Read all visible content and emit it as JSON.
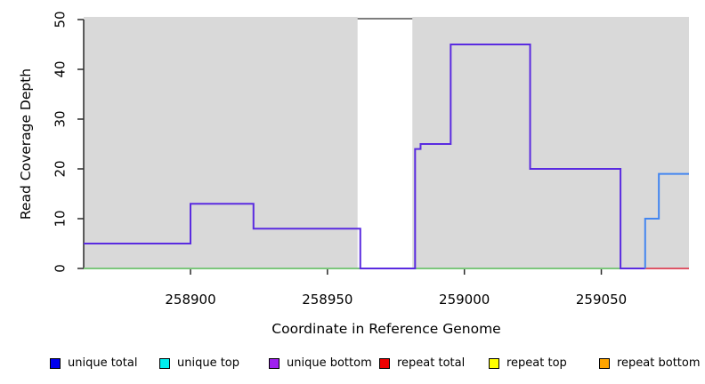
{
  "chart_data": {
    "type": "line",
    "subtype": "step-coverage",
    "title": "",
    "xlabel": "Coordinate in Reference Genome",
    "ylabel": "Read Coverage Depth",
    "xlim": [
      258861,
      259082
    ],
    "ylim": [
      0,
      50
    ],
    "x_ticks": [
      258900,
      258950,
      259000,
      259050
    ],
    "y_ticks": [
      0,
      10,
      20,
      30,
      40,
      50
    ],
    "grid": false,
    "legend_position": "bottom",
    "colors": {
      "plot_background_region": "#d9d9d9",
      "gap_marker": "#7d7d7d",
      "axis": "#2a2a2a",
      "tick_text": "#000000"
    },
    "background_regions": [
      {
        "name": "covered-region-left",
        "x0": 258861,
        "x1": 258961,
        "color": "#d9d9d9"
      },
      {
        "name": "covered-region-right",
        "x0": 258981,
        "x1": 259082,
        "color": "#d9d9d9"
      }
    ],
    "gap_region": {
      "x0": 258961,
      "x1": 258981,
      "marker_value": 50
    },
    "series": [
      {
        "name": "zero-baseline-green",
        "color": "#7cc67c",
        "width": 2,
        "points": [
          [
            258861,
            0
          ],
          [
            259057,
            0
          ]
        ]
      },
      {
        "name": "repeat-total-baseline-red",
        "color": "#dd5566",
        "width": 2,
        "points": [
          [
            259066,
            0
          ],
          [
            259082,
            0
          ]
        ]
      },
      {
        "name": "unique-coverage-step",
        "color": "#5a2be0",
        "width": 2,
        "points": [
          [
            258861,
            5
          ],
          [
            258900,
            5
          ],
          [
            258900,
            13
          ],
          [
            258923,
            13
          ],
          [
            258923,
            8
          ],
          [
            258962,
            8
          ],
          [
            258962,
            0
          ],
          [
            258982,
            0
          ],
          [
            258982,
            24
          ],
          [
            258984,
            24
          ],
          [
            258984,
            25
          ],
          [
            258995,
            25
          ],
          [
            258995,
            45
          ],
          [
            259024,
            45
          ],
          [
            259024,
            20
          ],
          [
            259057,
            20
          ],
          [
            259057,
            0
          ],
          [
            259066,
            0
          ]
        ]
      },
      {
        "name": "unique-total-step-right",
        "color": "#4386f0",
        "width": 2,
        "points": [
          [
            259066,
            0
          ],
          [
            259066,
            10
          ],
          [
            259071,
            10
          ],
          [
            259071,
            19
          ],
          [
            259082,
            19
          ]
        ]
      }
    ],
    "legend": [
      {
        "label": "unique total",
        "color": "#0000ee"
      },
      {
        "label": "unique top",
        "color": "#00eeee"
      },
      {
        "label": "unique bottom",
        "color": "#a020f0"
      },
      {
        "label": "repeat total",
        "color": "#ee0000"
      },
      {
        "label": "repeat top",
        "color": "#ffff00"
      },
      {
        "label": "repeat bottom",
        "color": "#ffa500"
      }
    ]
  }
}
